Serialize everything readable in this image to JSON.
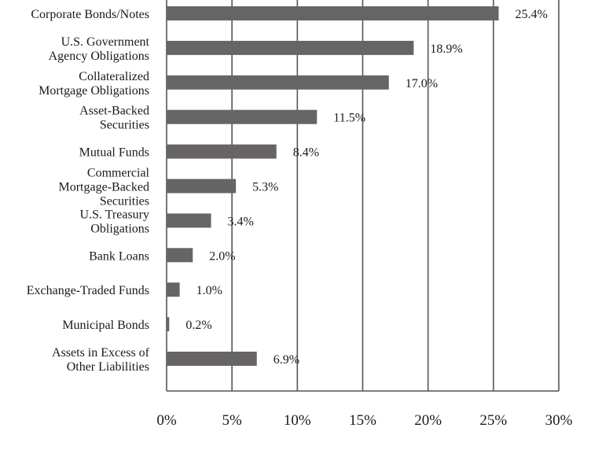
{
  "chart_data": {
    "type": "bar",
    "orientation": "horizontal",
    "categories": [
      [
        "Corporate Bonds/Notes"
      ],
      [
        "U.S. Government",
        "Agency Obligations"
      ],
      [
        "Collateralized",
        "Mortgage Obligations"
      ],
      [
        "Asset-Backed",
        "Securities"
      ],
      [
        "Mutual Funds"
      ],
      [
        "Commercial",
        "Mortgage-Backed",
        "Securities"
      ],
      [
        "U.S. Treasury",
        "Obligations"
      ],
      [
        "Bank Loans"
      ],
      [
        "Exchange-Traded Funds"
      ],
      [
        "Municipal Bonds"
      ],
      [
        "Assets in Excess of",
        "Other Liabilities"
      ]
    ],
    "values": [
      25.4,
      18.9,
      17.0,
      11.5,
      8.4,
      5.3,
      3.4,
      2.0,
      1.0,
      0.2,
      6.9
    ],
    "value_labels": [
      "25.4%",
      "18.9%",
      "17.0%",
      "11.5%",
      "8.4%",
      "5.3%",
      "3.4%",
      "2.0%",
      "1.0%",
      "0.2%",
      "6.9%"
    ],
    "xlim": [
      0,
      30
    ],
    "x_ticks": [
      0,
      5,
      10,
      15,
      20,
      25,
      30
    ],
    "x_tick_labels": [
      "0%",
      "5%",
      "10%",
      "15%",
      "20%",
      "25%",
      "30%"
    ],
    "grid": "vertical",
    "bar_color": "#676465",
    "axis_color": "#555555"
  }
}
